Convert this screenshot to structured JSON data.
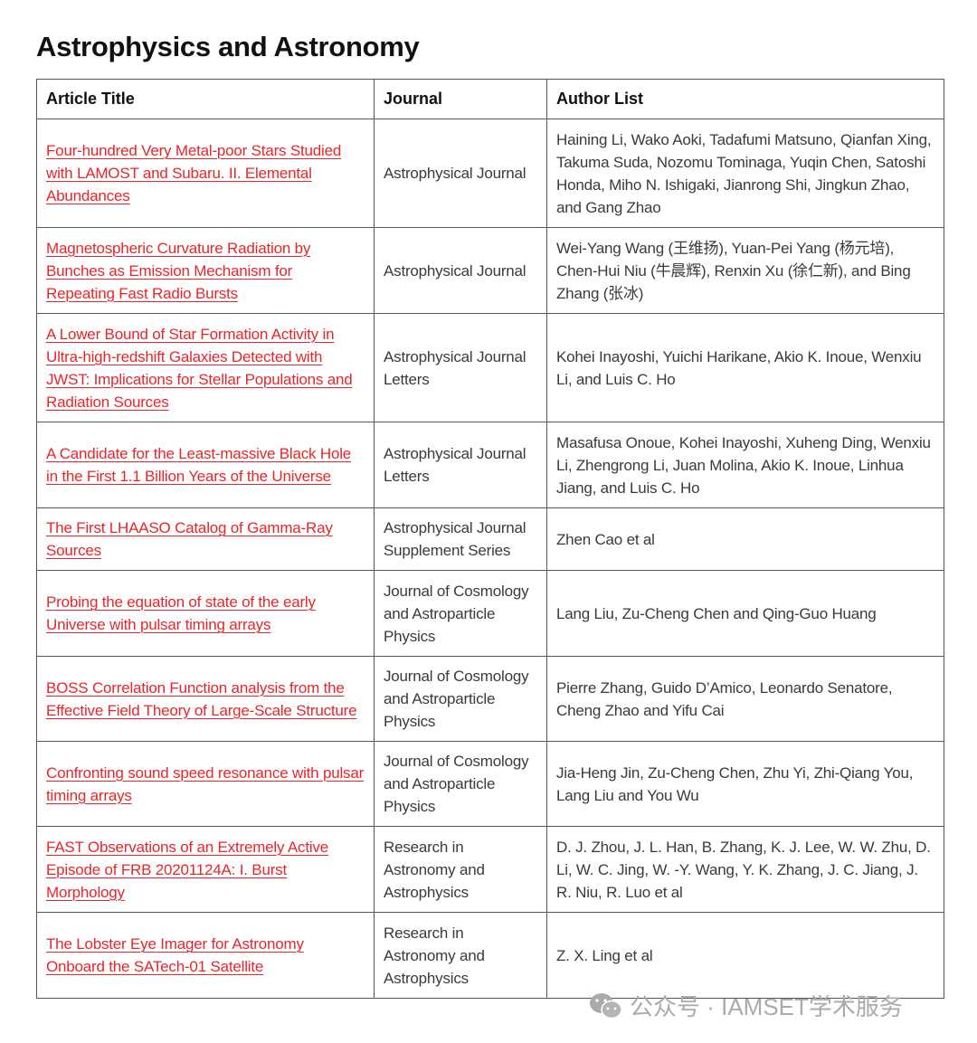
{
  "title": "Astrophysics and Astronomy",
  "headers": [
    "Article Title",
    "Journal",
    "Author List"
  ],
  "rows": [
    {
      "title": "Four-hundred Very Metal-poor Stars Studied with LAMOST and Subaru. II. Elemental Abundances",
      "journal": "Astrophysical Journal",
      "authors": "Haining Li, Wako Aoki, Tadafumi Matsuno, Qianfan Xing, Takuma Suda, Nozomu Tominaga, Yuqin Chen, Satoshi Honda, Miho N. Ishigaki, Jianrong Shi, Jingkun Zhao, and Gang Zhao"
    },
    {
      "title": "Magnetospheric Curvature Radiation by Bunches as Emission Mechanism for Repeating Fast Radio Bursts",
      "journal": "Astrophysical Journal",
      "authors": "Wei-Yang Wang (王维扬), Yuan-Pei Yang (杨元培), Chen-Hui Niu (牛晨辉), Renxin Xu (徐仁新), and Bing Zhang (张冰)"
    },
    {
      "title": "A Lower Bound of Star Formation Activity in Ultra-high-redshift Galaxies Detected with JWST: Implications for Stellar Populations and Radiation Sources",
      "journal": "Astrophysical Journal Letters",
      "authors": "Kohei Inayoshi, Yuichi Harikane, Akio K. Inoue, Wenxiu Li, and Luis C. Ho"
    },
    {
      "title": "A Candidate for the Least-massive Black Hole in the First 1.1 Billion Years of the Universe",
      "journal": "Astrophysical Journal Letters",
      "authors": "Masafusa Onoue, Kohei Inayoshi, Xuheng Ding, Wenxiu Li, Zhengrong Li, Juan Molina, Akio K. Inoue, Linhua Jiang, and Luis C. Ho"
    },
    {
      "title": "The First LHAASO Catalog of Gamma-Ray Sources",
      "journal": "Astrophysical Journal Supplement Series",
      "authors": "Zhen Cao et al"
    },
    {
      "title": "Probing the equation of state of the early Universe with pulsar timing arrays",
      "journal": "Journal of Cosmology and Astroparticle Physics",
      "authors": "Lang Liu, Zu-Cheng Chen and Qing-Guo Huang"
    },
    {
      "title": "BOSS Correlation Function analysis from the Effective Field Theory of Large-Scale Structure",
      "journal": "Journal of Cosmology and Astroparticle Physics",
      "authors": "Pierre Zhang, Guido D’Amico, Leonardo Senatore, Cheng Zhao and Yifu Cai"
    },
    {
      "title": "Confronting sound speed resonance with pulsar timing arrays",
      "journal": "Journal of Cosmology and Astroparticle Physics",
      "authors": "Jia-Heng Jin, Zu-Cheng Chen, Zhu Yi, Zhi-Qiang You, Lang Liu and You Wu"
    },
    {
      "title": "FAST Observations of an Extremely Active Episode of FRB 20201124A: I. Burst Morphology",
      "journal": "Research in Astronomy and Astrophysics",
      "authors": "D. J. Zhou, J. L. Han, B. Zhang, K. J. Lee, W. W. Zhu, D. Li, W. C. Jing, W. -Y. Wang, Y. K. Zhang, J. C. Jiang, J. R. Niu, R. Luo et al"
    },
    {
      "title": "The Lobster Eye Imager for Astronomy Onboard the SATech-01 Satellite",
      "journal": "Research in Astronomy and Astrophysics",
      "authors": "Z. X. Ling et al"
    }
  ],
  "watermark": "公众号 · IAMSET学术服务",
  "colors": {
    "link": "#e8262a",
    "border": "#555555"
  }
}
